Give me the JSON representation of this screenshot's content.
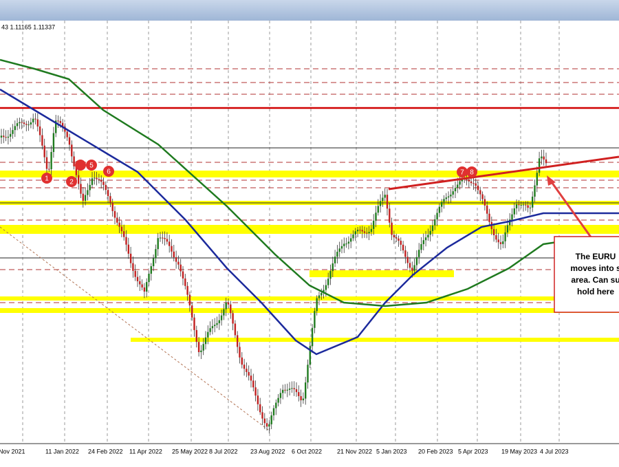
{
  "header": {
    "quote": "43 1.11165 1.11337"
  },
  "x_axis": {
    "labels": [
      "Nov 2021",
      "11 Jan 2022",
      "24 Feb 2022",
      "11 Apr 2022",
      "25 May 2022",
      "8 Jul 2022",
      "23 Aug 2022",
      "6 Oct 2022",
      "21 Nov 2022",
      "5 Jan 2023",
      "20 Feb 2023",
      "5 Apr 2023",
      "19 May 2023",
      "4 Jul 2023"
    ]
  },
  "markers": [
    "1",
    "2",
    "5",
    "6",
    "7",
    "8"
  ],
  "annotation": {
    "lines": [
      "The EURU",
      "moves into s",
      "area.  Can su",
      "hold here"
    ]
  }
}
